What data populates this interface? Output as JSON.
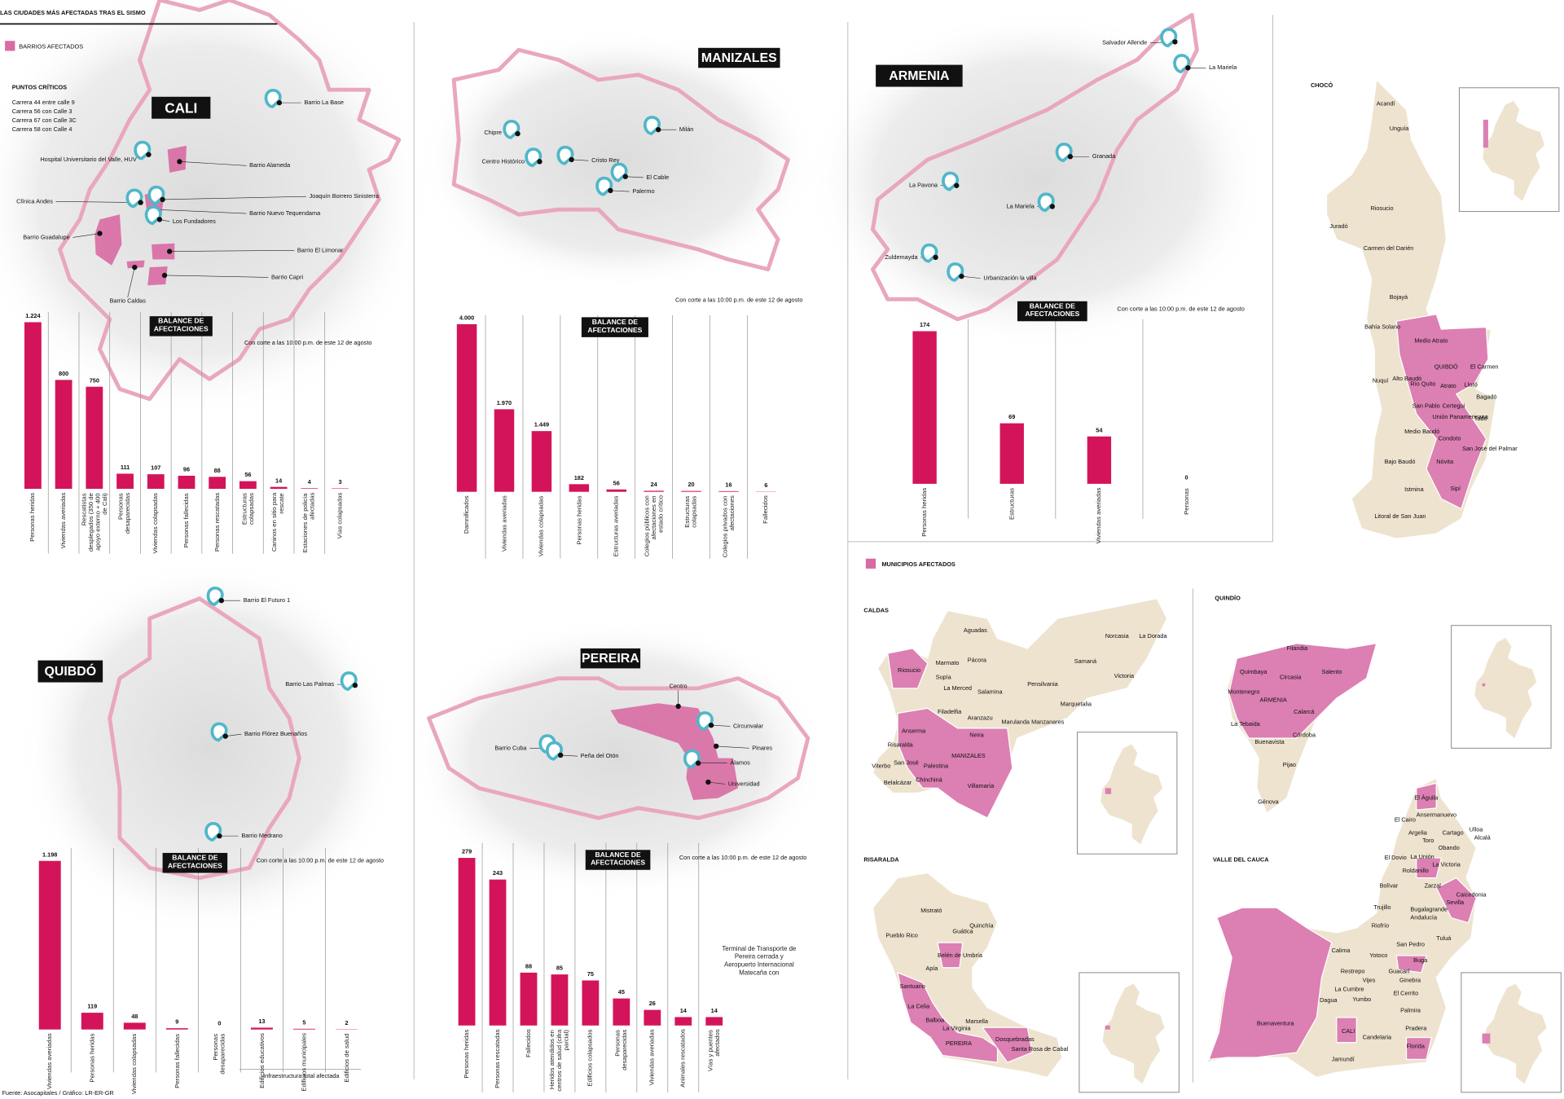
{
  "title": "LAS CIUDADES MÁS AFECTADAS TRAS EL SISMO",
  "barrios_legend": "BARRIOS AFECTADOS",
  "municipios_legend": "MUNICIPIOS AFECTADOS",
  "source": "Fuente: Asocapitales / Gráfico: LR-ER-GR",
  "chart_data": [
    {
      "type": "bar",
      "color": "#d4145a",
      "badge": "BALANCE DE AFECTACIONES",
      "note": "Con corte a las 10:00 p.m. de este 12 de agosto",
      "categories": [
        "Personas heridas",
        "Viviendas averiadas",
        "Rescatistas desplegados (350 de apoyo externo + 400 de Cali)",
        "Personas desaparecidas",
        "Viviendas colapsadas",
        "Personas fallecidas",
        "Personas rescatadas",
        "Estructuras colapsadas",
        "Caninos en sitio para rescate",
        "Estaciones de policía afectadas",
        "Vías colapsadas"
      ],
      "values": [
        1224,
        800,
        750,
        111,
        107,
        96,
        88,
        56,
        14,
        4,
        3
      ],
      "value_labels": [
        "1.224",
        "800",
        "750",
        "111",
        "107",
        "96",
        "88",
        "56",
        "14",
        "4",
        "3"
      ]
    },
    {
      "type": "bar",
      "color": "#d4145a",
      "badge": "BALANCE DE AFECTACIONES",
      "note": "Con corte a las 10:00 p.m. de este 12 de agosto",
      "categories": [
        "Damnificados",
        "Viviendas averiadas",
        "Viviendas colapsadas",
        "Personas heridas",
        "Estructuras averiadas",
        "Colegios públicos con afectaciones en estado crítico",
        "Estructuras colapsadas",
        "Colegios privados con afectaciones",
        "Fallecidos"
      ],
      "values": [
        4000,
        1970,
        1449,
        182,
        56,
        24,
        20,
        16,
        6
      ],
      "value_labels": [
        "4.000",
        "1.970",
        "1.449",
        "182",
        "56",
        "24",
        "20",
        "16",
        "6"
      ]
    },
    {
      "type": "bar",
      "color": "#d4145a",
      "badge": "BALANCE DE AFECTACIONES",
      "note": "Con corte a las 10:00 p.m. de este 12 de agosto",
      "categories": [
        "Personas heridas",
        "Estructuras",
        "Viviendas averiadas",
        "Personas"
      ],
      "values": [
        174,
        69,
        54,
        0
      ]
    },
    {
      "type": "bar",
      "color": "#d4145a",
      "badge": "BALANCE DE AFECTACIONES",
      "note": "Con corte a las 10:00 p.m. de este 12 de agosto",
      "group_note": "Infraestructura total afectada",
      "categories": [
        "Viviendas averiadas",
        "Personas heridas",
        "Viviendas colapsadas",
        "Personas fallecidas",
        "Personas desaparecidas",
        "Edificios educativos",
        "Edificios municipales",
        "Edificios de salud"
      ],
      "values": [
        1198,
        119,
        48,
        9,
        0,
        13,
        5,
        2
      ],
      "value_labels": [
        "1.198",
        "119",
        "48",
        "9",
        "0",
        "13",
        "5",
        "2"
      ]
    },
    {
      "type": "bar",
      "color": "#d4145a",
      "badge": "BALANCE DE AFECTACIONES",
      "note": "Con corte a las 10:00 p.m. de este 12 de agosto",
      "side_note": "Terminal de Transporte de Pereira cerrada y Aeropuerto Internacional Matecaña con",
      "categories": [
        "Personas heridas",
        "Personas rescatadas",
        "Fallecidos",
        "Heridos atendidos en centros de salud (cifra parcial)",
        "Edificios colapsados",
        "Personas desaparecidas",
        "Viviendas averiadas",
        "Animales rescatados",
        "Vías y puentes afectados"
      ],
      "values": [
        279,
        243,
        88,
        85,
        75,
        45,
        26,
        14,
        14
      ]
    }
  ],
  "city_maps": [
    {
      "name": "CALI",
      "critical_title": "PUNTOS CRÍTICOS",
      "critical_points": [
        "Carrera 44 entre calle 9",
        "Carrera 56 con Calle 3",
        "Carrera 67 con Calle 3C",
        "Carrera 58 con Calle 4"
      ],
      "labels": [
        "Barrio La Base",
        "Hospital Universitario del Valle, HUV",
        "Barrio Alameda",
        "Joaquín Borrero Sinisterra",
        "Clínica Andes",
        "Barrio Nuevo Tequendama",
        "Los Fundadores",
        "Barrio Guadalupe",
        "Barrio El Limonar",
        "Barrio Capri",
        "Barrio Caldas"
      ]
    },
    {
      "name": "MANIZALES",
      "labels": [
        "Chipre",
        "Centro Histórico",
        "Cristo Rey",
        "Milán",
        "El Cable",
        "Palermo"
      ]
    },
    {
      "name": "ARMENIA",
      "labels": [
        "Salvador Allende",
        "La Mariela",
        "Granada",
        "La Pavona",
        "La Mariela",
        "Zuldemayda",
        "Urbanización la villa"
      ]
    },
    {
      "name": "QUIBDÓ",
      "labels": [
        "Barrio El Futuro 1",
        "Barrio Las Palmas",
        "Barrio Flórez Buenaños",
        "Barrio Medrano"
      ]
    },
    {
      "name": "PEREIRA",
      "labels": [
        "Centro",
        "Barrio Cuba",
        "Peña del Otón",
        "Circunvalar",
        "Pinares",
        "Álamos",
        "Universidad"
      ]
    }
  ],
  "departments": [
    {
      "name": "CHOCÓ",
      "municipalities": [
        "Acandí",
        "Unguía",
        "Riosucio",
        "Juradó",
        "Carmen del Darién",
        "Bojayá",
        "Bahía Solano",
        "Medio Atrato",
        "QUIBDÓ",
        "El Carmen",
        "Nuquí",
        "Alto Baudó",
        "Río Quito",
        "Atrato",
        "Lloró",
        "Bagadó",
        "San Pablo",
        "Certegui",
        "Unión Panamericana",
        "Tadó",
        "Medio Baudó",
        "Condoto",
        "San José del Palmar",
        "Bajo Baudó",
        "Nóvita",
        "Istmina",
        "Sipí",
        "Litoral de San Juan"
      ]
    },
    {
      "name": "CALDAS",
      "municipalities": [
        "Aguadas",
        "Pácora",
        "Norcasia",
        "La Dorada",
        "Samaná",
        "Riosucio",
        "Marmato",
        "Supía",
        "La Merced",
        "Salamina",
        "Victoria",
        "Pensilvania",
        "Filadelfia",
        "Aranzazu",
        "Marquetalia",
        "Marulanda",
        "Manzanares",
        "Anserma",
        "Neira",
        "Risaralda",
        "Viterbo",
        "San José",
        "Palestina",
        "MANIZALES",
        "Belalcázar",
        "Chinchiná",
        "Villamaría"
      ]
    },
    {
      "name": "QUINDÍO",
      "municipalities": [
        "Filandia",
        "Quimbaya",
        "Circasia",
        "Salento",
        "Montenegro",
        "ARMENIA",
        "Calarcá",
        "La Tebaida",
        "Córdoba",
        "Buenavista",
        "Pijao",
        "Génova"
      ]
    },
    {
      "name": "RISARALDA",
      "municipalities": [
        "Mistrató",
        "Quinchía",
        "Guática",
        "Pueblo Rico",
        "Belén de Umbría",
        "Apía",
        "Santuario",
        "La Celia",
        "Balboa",
        "La Virginia",
        "Marsella",
        "PEREIRA",
        "Dosquebradas",
        "Santa Rosa de Cabal"
      ]
    },
    {
      "name": "VALLE DEL CAUCA",
      "municipalities": [
        "El Águila",
        "Ansermanuevo",
        "El Cairo",
        "Argelia",
        "Cartago",
        "Ulloa",
        "Toro",
        "Alcalá",
        "Obando",
        "El Dovio",
        "La Unión",
        "La Victoria",
        "Roldanillo",
        "Bolívar",
        "Zarzal",
        "Caicedonia",
        "Sevilla",
        "Trujillo",
        "Bugalagrande",
        "Riofrío",
        "Andalucía",
        "Tuluá",
        "Calima",
        "San Pedro",
        "Yotoco",
        "Buga",
        "Restrepo",
        "Guacarí",
        "Ginebra",
        "Vijes",
        "La Cumbre",
        "El Cerrito",
        "Dagua",
        "Yumbo",
        "Palmira",
        "Buenaventura",
        "CALI",
        "Pradera",
        "Candelaria",
        "Florida",
        "Jamundí"
      ]
    }
  ]
}
